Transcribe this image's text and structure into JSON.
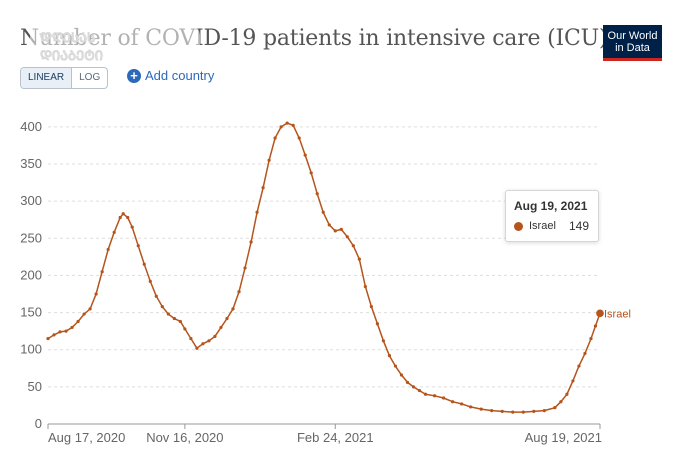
{
  "header": {
    "title": "Number of COVID-19 patients in intensive care (ICU)",
    "logo_line1": "Our World",
    "logo_line2": "in Data"
  },
  "controls": {
    "linear_label": "LINEAR",
    "log_label": "LOG",
    "add_country_label": "Add country"
  },
  "tooltip": {
    "date": "Aug 19, 2021",
    "entity": "Israel",
    "value": "149"
  },
  "colors": {
    "series": "#b5541b",
    "grid": "#dddddd",
    "axis": "#666666"
  },
  "chart_data": {
    "type": "line",
    "title": "Number of COVID-19 patients in intensive care (ICU)",
    "xlabel": "",
    "ylabel": "",
    "ylim": [
      0,
      420
    ],
    "yticks": [
      0,
      50,
      100,
      150,
      200,
      250,
      300,
      350,
      400
    ],
    "xticks": [
      "Aug 17, 2020",
      "Nov 16, 2020",
      "Feb 24, 2021",
      "Aug 19, 2021"
    ],
    "xrange": [
      "2020-08-17",
      "2021-08-19"
    ],
    "grid": true,
    "series": [
      {
        "name": "Israel",
        "points": [
          [
            "2020-08-17",
            115
          ],
          [
            "2020-08-21",
            120
          ],
          [
            "2020-08-25",
            124
          ],
          [
            "2020-08-29",
            125
          ],
          [
            "2020-09-02",
            130
          ],
          [
            "2020-09-06",
            138
          ],
          [
            "2020-09-10",
            148
          ],
          [
            "2020-09-14",
            155
          ],
          [
            "2020-09-18",
            175
          ],
          [
            "2020-09-22",
            205
          ],
          [
            "2020-09-26",
            235
          ],
          [
            "2020-09-30",
            258
          ],
          [
            "2020-10-04",
            278
          ],
          [
            "2020-10-06",
            283
          ],
          [
            "2020-10-09",
            278
          ],
          [
            "2020-10-12",
            265
          ],
          [
            "2020-10-16",
            240
          ],
          [
            "2020-10-20",
            215
          ],
          [
            "2020-10-24",
            192
          ],
          [
            "2020-10-28",
            172
          ],
          [
            "2020-11-01",
            158
          ],
          [
            "2020-11-05",
            148
          ],
          [
            "2020-11-09",
            142
          ],
          [
            "2020-11-13",
            138
          ],
          [
            "2020-11-16",
            128
          ],
          [
            "2020-11-20",
            115
          ],
          [
            "2020-11-24",
            102
          ],
          [
            "2020-11-28",
            108
          ],
          [
            "2020-12-02",
            112
          ],
          [
            "2020-12-06",
            118
          ],
          [
            "2020-12-10",
            130
          ],
          [
            "2020-12-14",
            142
          ],
          [
            "2020-12-18",
            155
          ],
          [
            "2020-12-22",
            178
          ],
          [
            "2020-12-26",
            210
          ],
          [
            "2020-12-30",
            245
          ],
          [
            "2021-01-03",
            285
          ],
          [
            "2021-01-07",
            318
          ],
          [
            "2021-01-11",
            355
          ],
          [
            "2021-01-15",
            385
          ],
          [
            "2021-01-19",
            400
          ],
          [
            "2021-01-23",
            405
          ],
          [
            "2021-01-27",
            402
          ],
          [
            "2021-01-31",
            385
          ],
          [
            "2021-02-04",
            362
          ],
          [
            "2021-02-08",
            338
          ],
          [
            "2021-02-12",
            310
          ],
          [
            "2021-02-16",
            285
          ],
          [
            "2021-02-20",
            268
          ],
          [
            "2021-02-24",
            260
          ],
          [
            "2021-02-28",
            262
          ],
          [
            "2021-03-04",
            252
          ],
          [
            "2021-03-08",
            240
          ],
          [
            "2021-03-12",
            222
          ],
          [
            "2021-03-16",
            185
          ],
          [
            "2021-03-20",
            158
          ],
          [
            "2021-03-24",
            135
          ],
          [
            "2021-03-28",
            112
          ],
          [
            "2021-04-01",
            92
          ],
          [
            "2021-04-05",
            78
          ],
          [
            "2021-04-09",
            66
          ],
          [
            "2021-04-13",
            56
          ],
          [
            "2021-04-17",
            50
          ],
          [
            "2021-04-21",
            45
          ],
          [
            "2021-04-25",
            40
          ],
          [
            "2021-05-01",
            38
          ],
          [
            "2021-05-07",
            35
          ],
          [
            "2021-05-13",
            30
          ],
          [
            "2021-05-19",
            27
          ],
          [
            "2021-05-25",
            23
          ],
          [
            "2021-06-01",
            20
          ],
          [
            "2021-06-08",
            18
          ],
          [
            "2021-06-15",
            17
          ],
          [
            "2021-06-22",
            16
          ],
          [
            "2021-06-29",
            16
          ],
          [
            "2021-07-06",
            17
          ],
          [
            "2021-07-13",
            18
          ],
          [
            "2021-07-20",
            22
          ],
          [
            "2021-07-24",
            30
          ],
          [
            "2021-07-28",
            40
          ],
          [
            "2021-08-01",
            58
          ],
          [
            "2021-08-05",
            78
          ],
          [
            "2021-08-09",
            95
          ],
          [
            "2021-08-13",
            115
          ],
          [
            "2021-08-16",
            132
          ],
          [
            "2021-08-19",
            149
          ]
        ]
      }
    ]
  }
}
